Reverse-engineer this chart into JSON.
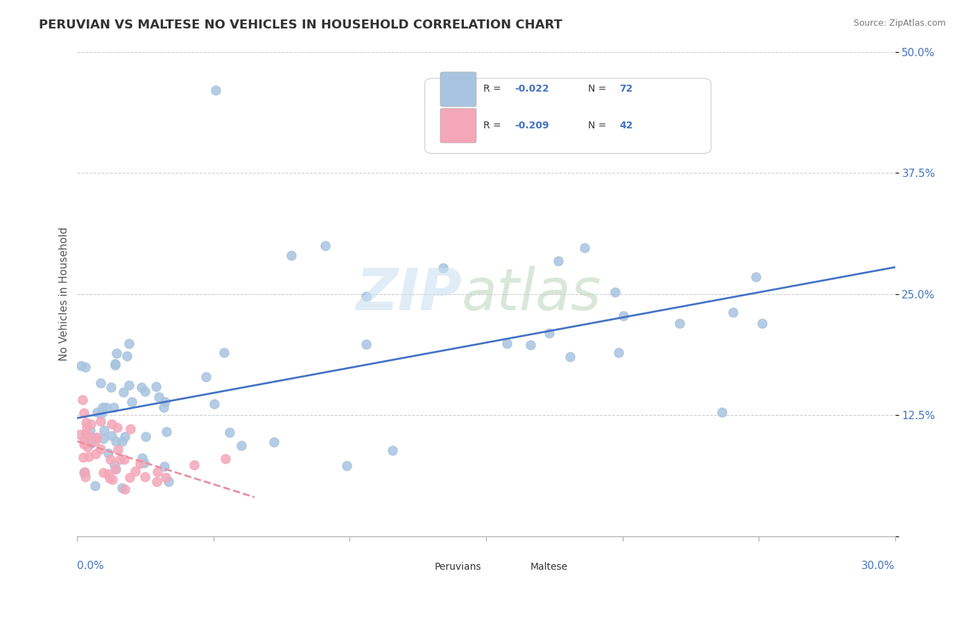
{
  "title": "PERUVIAN VS MALTESE NO VEHICLES IN HOUSEHOLD CORRELATION CHART",
  "source_text": "Source: ZipAtlas.com",
  "ylabel": "No Vehicles in Household",
  "xlim": [
    0.0,
    0.3
  ],
  "ylim": [
    0.0,
    0.5
  ],
  "yticks": [
    0.0,
    0.125,
    0.25,
    0.375,
    0.5
  ],
  "ytick_labels": [
    "",
    "12.5%",
    "25.0%",
    "37.5%",
    "50.0%"
  ],
  "peruvian_color": "#a8c4e0",
  "maltese_color": "#f4a7b9",
  "peruvian_line_color": "#4472c4",
  "maltese_line_color": "#e88fa0",
  "background_color": "#ffffff",
  "grid_color": "#cccccc"
}
